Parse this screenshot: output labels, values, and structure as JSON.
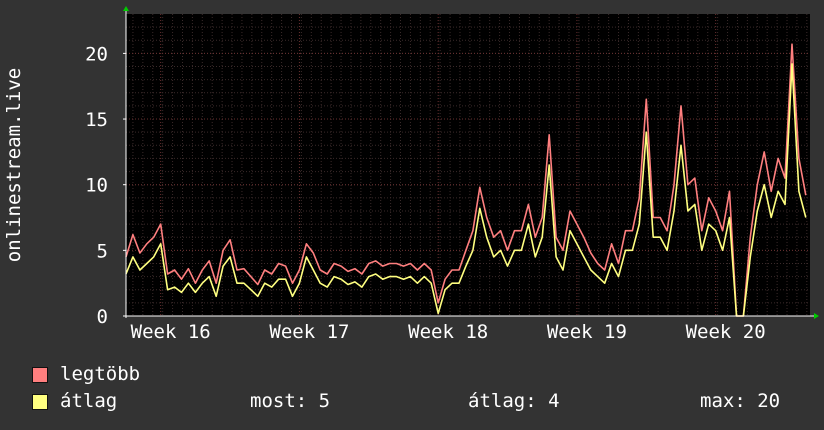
{
  "chart_data": {
    "type": "line",
    "ylabel": "onlinestream.live",
    "ylim": [
      0,
      23
    ],
    "yticks": [
      0,
      5,
      10,
      15,
      20
    ],
    "xlim": [
      15.75,
      20.68
    ],
    "xticks": [
      {
        "value": 16,
        "label": "Week 16"
      },
      {
        "value": 17,
        "label": "Week 17"
      },
      {
        "value": 18,
        "label": "Week 18"
      },
      {
        "value": 19,
        "label": "Week 19"
      },
      {
        "value": 20,
        "label": "Week 20"
      }
    ],
    "grid": true,
    "series": [
      {
        "name": "legtöbb",
        "color": "#ff7f7f",
        "x": [
          15.75,
          15.8,
          15.85,
          15.9,
          15.95,
          16.0,
          16.05,
          16.1,
          16.15,
          16.2,
          16.25,
          16.3,
          16.35,
          16.4,
          16.45,
          16.5,
          16.55,
          16.6,
          16.65,
          16.7,
          16.75,
          16.8,
          16.85,
          16.9,
          16.95,
          17.0,
          17.05,
          17.1,
          17.15,
          17.2,
          17.25,
          17.3,
          17.35,
          17.4,
          17.45,
          17.5,
          17.55,
          17.6,
          17.65,
          17.7,
          17.75,
          17.8,
          17.85,
          17.9,
          17.95,
          18.0,
          18.05,
          18.1,
          18.15,
          18.2,
          18.25,
          18.3,
          18.35,
          18.4,
          18.45,
          18.5,
          18.55,
          18.6,
          18.65,
          18.7,
          18.75,
          18.8,
          18.85,
          18.9,
          18.95,
          19.0,
          19.05,
          19.1,
          19.15,
          19.2,
          19.25,
          19.3,
          19.35,
          19.4,
          19.45,
          19.5,
          19.55,
          19.6,
          19.65,
          19.7,
          19.75,
          19.8,
          19.85,
          19.9,
          19.95,
          20.0,
          20.05,
          20.1,
          20.15,
          20.2,
          20.25,
          20.3,
          20.35,
          20.4,
          20.45,
          20.5,
          20.55,
          20.6,
          20.65
        ],
        "values": [
          4.5,
          6.2,
          4.8,
          5.5,
          6,
          7,
          3.2,
          3.5,
          2.8,
          3.6,
          2.5,
          3.5,
          4.2,
          2.5,
          5,
          5.8,
          3.5,
          3.6,
          3,
          2.4,
          3.5,
          3.2,
          4,
          3.8,
          2.5,
          3.5,
          5.5,
          4.8,
          3.5,
          3.2,
          4,
          3.8,
          3.4,
          3.6,
          3.2,
          4,
          4.2,
          3.8,
          4,
          4,
          3.8,
          4,
          3.5,
          4,
          3.5,
          1,
          2.8,
          3.5,
          3.5,
          5,
          6.5,
          9.8,
          7.5,
          6,
          6.5,
          5,
          6.5,
          6.5,
          8.5,
          6,
          7.5,
          13.8,
          6,
          5,
          8,
          7,
          6,
          4.8,
          4,
          3.5,
          5.5,
          4,
          6.5,
          6.5,
          9,
          16.5,
          7.5,
          7.5,
          6.5,
          10,
          16,
          10,
          10.5,
          6.5,
          9,
          8,
          6.5,
          9.5,
          0,
          0,
          6,
          10,
          12.5,
          9.5,
          12,
          10.5,
          20.7,
          12,
          9.2
        ],
        "dense_until": 15.75
      },
      {
        "name": "átlag",
        "color": "#ffff80",
        "x": [
          15.75,
          15.8,
          15.85,
          15.9,
          15.95,
          16.0,
          16.05,
          16.1,
          16.15,
          16.2,
          16.25,
          16.3,
          16.35,
          16.4,
          16.45,
          16.5,
          16.55,
          16.6,
          16.65,
          16.7,
          16.75,
          16.8,
          16.85,
          16.9,
          16.95,
          17.0,
          17.05,
          17.1,
          17.15,
          17.2,
          17.25,
          17.3,
          17.35,
          17.4,
          17.45,
          17.5,
          17.55,
          17.6,
          17.65,
          17.7,
          17.75,
          17.8,
          17.85,
          17.9,
          17.95,
          18.0,
          18.05,
          18.1,
          18.15,
          18.2,
          18.25,
          18.3,
          18.35,
          18.4,
          18.45,
          18.5,
          18.55,
          18.6,
          18.65,
          18.7,
          18.75,
          18.8,
          18.85,
          18.9,
          18.95,
          19.0,
          19.05,
          19.1,
          19.15,
          19.2,
          19.25,
          19.3,
          19.35,
          19.4,
          19.45,
          19.5,
          19.55,
          19.6,
          19.65,
          19.7,
          19.75,
          19.8,
          19.85,
          19.9,
          19.95,
          20.0,
          20.05,
          20.1,
          20.15,
          20.2,
          20.25,
          20.3,
          20.35,
          20.4,
          20.45,
          20.5,
          20.55,
          20.6,
          20.65
        ],
        "values": [
          3.2,
          4.5,
          3.5,
          4,
          4.5,
          5.5,
          2,
          2.2,
          1.8,
          2.5,
          1.8,
          2.5,
          3,
          1.5,
          3.8,
          4.5,
          2.5,
          2.5,
          2,
          1.5,
          2.5,
          2.2,
          2.8,
          2.8,
          1.5,
          2.5,
          4.5,
          3.5,
          2.5,
          2.2,
          3,
          2.8,
          2.4,
          2.6,
          2.2,
          3,
          3.2,
          2.8,
          3,
          3,
          2.8,
          3,
          2.5,
          3,
          2.5,
          0.2,
          2,
          2.5,
          2.5,
          3.8,
          5,
          8.2,
          6,
          4.5,
          5,
          3.8,
          5,
          5,
          7,
          4.5,
          6,
          11.5,
          4.5,
          3.5,
          6.5,
          5.5,
          4.5,
          3.5,
          3,
          2.5,
          4,
          3,
          5,
          5,
          7,
          14,
          6,
          6,
          5,
          8,
          13,
          8,
          8.5,
          5,
          7,
          6.5,
          5,
          7.5,
          0,
          0,
          4.5,
          8,
          10,
          7.5,
          9.5,
          8.5,
          19.2,
          9.5,
          7.5
        ]
      }
    ]
  },
  "legend": [
    {
      "name": "legtöbb",
      "color": "#ff7f7f"
    },
    {
      "name": "átlag",
      "color": "#ffff80"
    }
  ],
  "stats": {
    "current_label": "most:",
    "current_value": "5",
    "average_label": "átlag:",
    "average_value": "4",
    "max_label": "max:",
    "max_value": "20"
  }
}
